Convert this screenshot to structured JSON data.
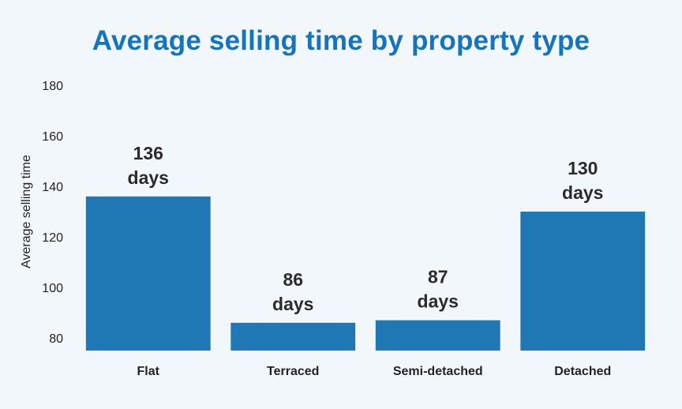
{
  "chart_data": {
    "type": "bar",
    "title": "Average selling time by property type",
    "xlabel": "",
    "ylabel": "Average selling time",
    "categories": [
      "Flat",
      "Terraced",
      "Semi-detached",
      "Detached"
    ],
    "values": [
      136,
      86,
      87,
      130
    ],
    "data_labels": [
      [
        "136",
        "days"
      ],
      [
        "86",
        "days"
      ],
      [
        "87",
        "days"
      ],
      [
        "130",
        "days"
      ]
    ],
    "ylim": [
      75,
      180
    ],
    "yticks": [
      80,
      100,
      120,
      140,
      160,
      180
    ],
    "grid": false,
    "legend": "none",
    "bar_color": "#1f77b4",
    "title_color": "#1474c4"
  }
}
